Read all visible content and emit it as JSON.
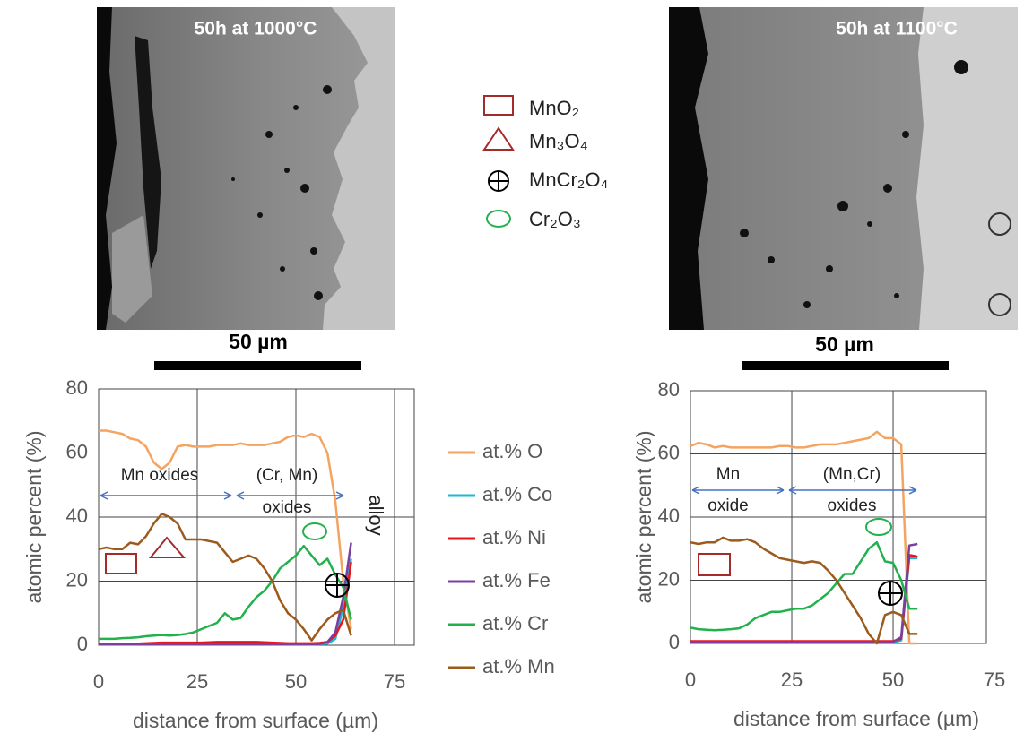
{
  "images": [
    {
      "caption": "50h at 1000°C",
      "scale_label": "50 µm"
    },
    {
      "caption": "50h at 1100°C",
      "scale_label": "50 µm"
    }
  ],
  "phase_legend": [
    "MnO₂",
    "Mn₃O₄",
    "MnCr₂O₄",
    "Cr₂O₃"
  ],
  "chart_data": [
    {
      "type": "line",
      "x_label": "distance from surface (µm)",
      "y_label": "atomic percent (%)",
      "xlim": [
        0,
        80
      ],
      "ylim": [
        0,
        80
      ],
      "xticks": [
        0,
        25,
        50,
        75
      ],
      "yticks": [
        0,
        20,
        40,
        60,
        80
      ],
      "grid": true,
      "annotations": [
        "Mn oxides",
        "(Cr, Mn)",
        "oxides",
        "alloy"
      ],
      "x": [
        0,
        2,
        4,
        6,
        8,
        10,
        12,
        14,
        16,
        18,
        20,
        22,
        24,
        26,
        28,
        30,
        32,
        34,
        36,
        38,
        40,
        42,
        44,
        46,
        48,
        50,
        52,
        54,
        56,
        58,
        60,
        62,
        64
      ],
      "series": [
        {
          "name": "at.% O",
          "color": "#f4a460",
          "values": [
            67,
            67,
            66.5,
            66,
            64.5,
            64,
            62,
            57,
            55,
            57,
            62,
            62.5,
            62,
            62,
            62,
            62.5,
            62.5,
            62.5,
            63,
            62.5,
            62.5,
            62.5,
            63,
            63.5,
            65,
            65.5,
            65,
            66,
            65,
            60,
            45,
            20,
            5
          ]
        },
        {
          "name": "at.% Co",
          "color": "#1fb5d8",
          "values": [
            0.3,
            0.3,
            0.3,
            0.3,
            0.3,
            0.3,
            0.3,
            0.3,
            0.3,
            0.3,
            0.3,
            0.3,
            0.3,
            0.3,
            0.3,
            0.3,
            0.3,
            0.3,
            0.3,
            0.3,
            0.3,
            0.3,
            0.3,
            0.3,
            0.3,
            0.3,
            0.3,
            0.3,
            0.3,
            0.5,
            2,
            12,
            27
          ]
        },
        {
          "name": "at.% Ni",
          "color": "#e8141c",
          "values": [
            0.5,
            0.5,
            0.5,
            0.5,
            0.5,
            0.5,
            0.6,
            0.7,
            0.8,
            0.8,
            0.8,
            0.8,
            0.8,
            0.8,
            0.9,
            1,
            1,
            1,
            1,
            1,
            1,
            0.9,
            0.8,
            0.7,
            0.6,
            0.6,
            0.6,
            0.6,
            0.7,
            1,
            3,
            8,
            26
          ]
        },
        {
          "name": "at.% Fe",
          "color": "#7b3fa0",
          "values": [
            0.2,
            0.2,
            0.2,
            0.2,
            0.2,
            0.2,
            0.2,
            0.2,
            0.2,
            0.2,
            0.2,
            0.2,
            0.2,
            0.2,
            0.2,
            0.2,
            0.2,
            0.2,
            0.2,
            0.2,
            0.2,
            0.2,
            0.2,
            0.2,
            0.2,
            0.2,
            0.2,
            0.2,
            0.3,
            1,
            4,
            15,
            32
          ]
        },
        {
          "name": "at.% Cr",
          "color": "#22b14c",
          "values": [
            2,
            2,
            2,
            2.2,
            2.3,
            2.5,
            2.8,
            3,
            3.2,
            3,
            3.2,
            3.5,
            4,
            5,
            6,
            7,
            10,
            8,
            8.5,
            12,
            15,
            17,
            20,
            24,
            26,
            28,
            31,
            28,
            25,
            27,
            22,
            18,
            8
          ]
        },
        {
          "name": "at.% Mn",
          "color": "#9c5a1c",
          "values": [
            30,
            30.5,
            30,
            30,
            32,
            31.5,
            34,
            38,
            41,
            40,
            38,
            33,
            33,
            33,
            32.5,
            32,
            29,
            26,
            27,
            28,
            27,
            24,
            20,
            14,
            10,
            8,
            5,
            1.5,
            5,
            8,
            10,
            11,
            3
          ]
        }
      ]
    },
    {
      "type": "line",
      "x_label": "distance from surface (µm)",
      "y_label": "atomic percent (%)",
      "xlim": [
        0,
        73
      ],
      "ylim": [
        0,
        80
      ],
      "xticks": [
        0,
        25,
        50,
        75
      ],
      "yticks": [
        0,
        20,
        40,
        60,
        80
      ],
      "grid": true,
      "annotations": [
        "Mn",
        "oxide",
        "(Mn,Cr)",
        "oxides"
      ],
      "x": [
        0,
        2,
        4,
        6,
        8,
        10,
        12,
        14,
        16,
        18,
        20,
        22,
        24,
        26,
        28,
        30,
        32,
        34,
        36,
        38,
        40,
        42,
        44,
        46,
        48,
        50,
        52,
        54,
        56
      ],
      "series": [
        {
          "color": "#f4a460",
          "values": [
            62.5,
            63.5,
            63,
            62,
            62.5,
            62,
            62,
            62,
            62,
            62,
            62,
            62.5,
            62.5,
            62,
            62,
            62.5,
            63,
            63,
            63,
            63.5,
            64,
            64.5,
            65,
            67,
            65,
            65,
            63,
            0,
            0
          ]
        },
        {
          "color": "#1fb5d8",
          "values": [
            0.3,
            0.3,
            0.3,
            0.3,
            0.3,
            0.3,
            0.3,
            0.3,
            0.3,
            0.3,
            0.3,
            0.3,
            0.3,
            0.3,
            0.3,
            0.3,
            0.3,
            0.3,
            0.3,
            0.3,
            0.3,
            0.3,
            0.3,
            0.3,
            0.3,
            0.3,
            1,
            27,
            27
          ]
        },
        {
          "color": "#e8141c",
          "values": [
            0.7,
            0.7,
            0.7,
            0.7,
            0.7,
            0.7,
            0.7,
            0.7,
            0.7,
            0.7,
            0.7,
            0.7,
            0.7,
            0.7,
            0.7,
            0.7,
            0.7,
            0.7,
            0.7,
            0.7,
            0.7,
            0.7,
            0.7,
            0.7,
            0.7,
            0.7,
            1.5,
            28,
            27.5
          ]
        },
        {
          "color": "#7b3fa0",
          "values": [
            0.5,
            0.5,
            0.5,
            0.5,
            0.5,
            0.5,
            0.5,
            0.5,
            0.5,
            0.5,
            0.5,
            0.5,
            0.5,
            0.5,
            0.5,
            0.5,
            0.5,
            0.5,
            0.5,
            0.5,
            0.5,
            0.5,
            0.5,
            0.5,
            0.5,
            0.5,
            2,
            31,
            31.5
          ]
        },
        {
          "color": "#22b14c",
          "values": [
            5,
            4.5,
            4.3,
            4.2,
            4.3,
            4.5,
            4.8,
            6,
            8,
            9,
            10,
            10,
            10.5,
            11,
            11,
            12,
            14,
            16,
            19,
            22,
            22,
            26,
            30,
            32,
            26,
            25.5,
            20,
            11,
            11
          ]
        },
        {
          "color": "#9c5a1c",
          "values": [
            32,
            31.5,
            32,
            32,
            33.5,
            32.5,
            32.5,
            33,
            32,
            30,
            28.5,
            27,
            26.5,
            26,
            25.5,
            26,
            25.5,
            23,
            20,
            16,
            12,
            8,
            3,
            0,
            9,
            10,
            9,
            3,
            3
          ]
        }
      ]
    }
  ]
}
